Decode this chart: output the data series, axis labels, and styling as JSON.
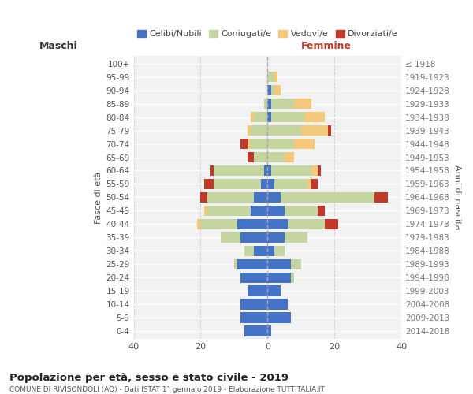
{
  "age_groups": [
    "0-4",
    "5-9",
    "10-14",
    "15-19",
    "20-24",
    "25-29",
    "30-34",
    "35-39",
    "40-44",
    "45-49",
    "50-54",
    "55-59",
    "60-64",
    "65-69",
    "70-74",
    "75-79",
    "80-84",
    "85-89",
    "90-94",
    "95-99",
    "100+"
  ],
  "birth_years": [
    "2014-2018",
    "2009-2013",
    "2004-2008",
    "1999-2003",
    "1994-1998",
    "1989-1993",
    "1984-1988",
    "1979-1983",
    "1974-1978",
    "1969-1973",
    "1964-1968",
    "1959-1963",
    "1954-1958",
    "1949-1953",
    "1944-1948",
    "1939-1943",
    "1934-1938",
    "1929-1933",
    "1924-1928",
    "1919-1923",
    "≤ 1918"
  ],
  "colors": {
    "celibi": "#4472c4",
    "coniugati": "#c5d5a0",
    "vedovi": "#f5c97a",
    "divorziati": "#c0392b"
  },
  "maschi": {
    "celibi": [
      7,
      8,
      8,
      6,
      8,
      9,
      4,
      8,
      9,
      5,
      4,
      2,
      1,
      0,
      0,
      0,
      0,
      0,
      0,
      0,
      0
    ],
    "coniugati": [
      0,
      0,
      0,
      0,
      0,
      1,
      3,
      6,
      11,
      13,
      14,
      14,
      15,
      4,
      5,
      5,
      4,
      1,
      0,
      0,
      0
    ],
    "vedovi": [
      0,
      0,
      0,
      0,
      0,
      0,
      0,
      0,
      1,
      1,
      0,
      0,
      0,
      0,
      1,
      1,
      1,
      0,
      0,
      0,
      0
    ],
    "divorziati": [
      0,
      0,
      0,
      0,
      0,
      0,
      0,
      0,
      0,
      0,
      2,
      3,
      1,
      2,
      2,
      0,
      0,
      0,
      0,
      0,
      0
    ]
  },
  "femmine": {
    "celibi": [
      1,
      7,
      6,
      4,
      7,
      7,
      2,
      5,
      6,
      5,
      4,
      2,
      1,
      0,
      0,
      0,
      1,
      1,
      1,
      0,
      0
    ],
    "coniugati": [
      0,
      0,
      0,
      0,
      1,
      3,
      3,
      7,
      11,
      10,
      28,
      10,
      12,
      5,
      8,
      10,
      10,
      7,
      1,
      2,
      0
    ],
    "vedovi": [
      0,
      0,
      0,
      0,
      0,
      0,
      0,
      0,
      0,
      0,
      0,
      1,
      2,
      3,
      6,
      8,
      6,
      5,
      2,
      1,
      0
    ],
    "divorziati": [
      0,
      0,
      0,
      0,
      0,
      0,
      0,
      0,
      4,
      2,
      4,
      2,
      1,
      0,
      0,
      1,
      0,
      0,
      0,
      0,
      0
    ]
  },
  "title": "Popolazione per età, sesso e stato civile - 2019",
  "subtitle": "COMUNE DI RIVISONDOLI (AQ) - Dati ISTAT 1° gennaio 2019 - Elaborazione TUTTITALIA.IT",
  "xlabel_left": "Maschi",
  "xlabel_right": "Femmine",
  "ylabel_left": "Fasce di età",
  "ylabel_right": "Anni di nascita",
  "xlim": 40,
  "legend_labels": [
    "Celibi/Nubili",
    "Coniugati/e",
    "Vedovi/e",
    "Divorziati/e"
  ],
  "bg_color": "#f5f5f5",
  "grid_color": "#cccccc"
}
